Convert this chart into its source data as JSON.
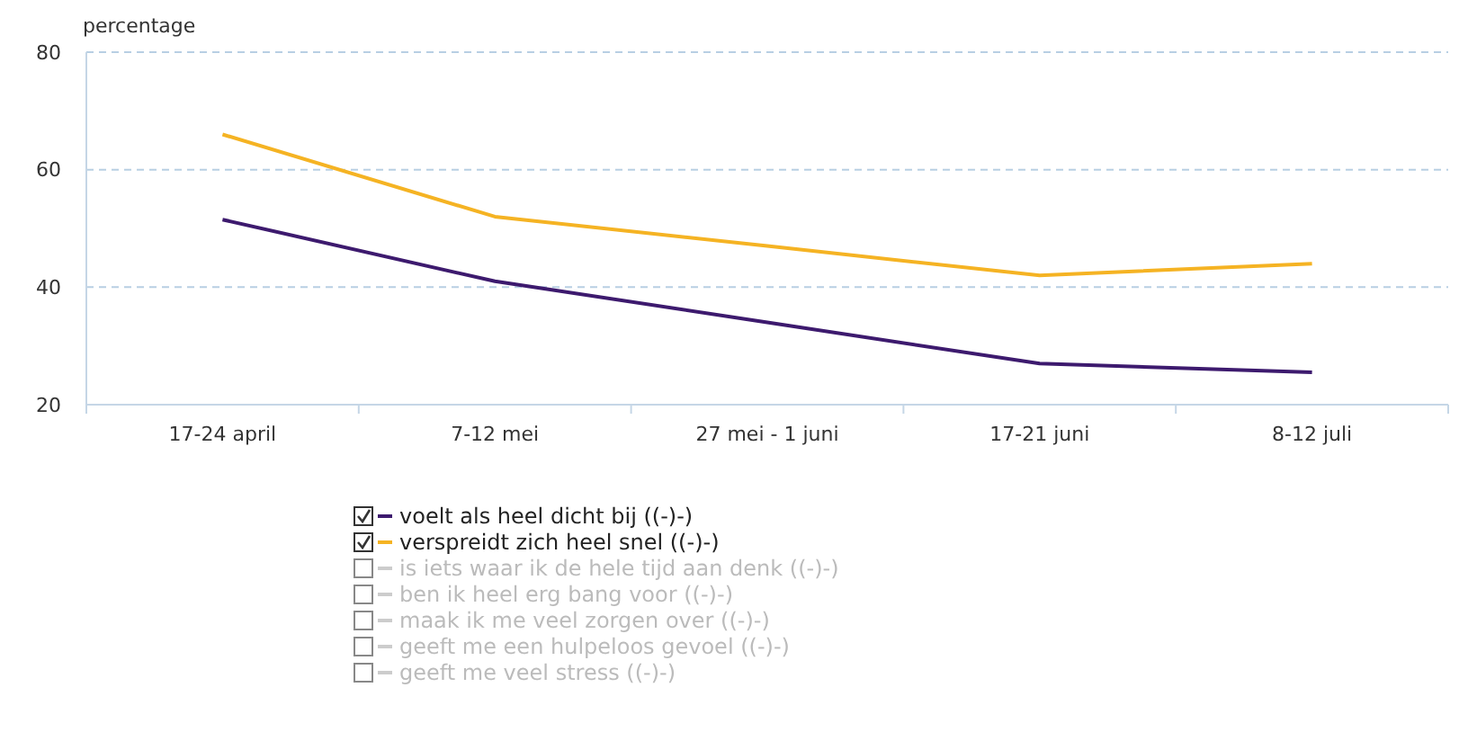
{
  "chart_data": {
    "type": "line",
    "ylabel": "percentage",
    "categories": [
      "17-24 april",
      "7-12 mei",
      "27 mei - 1 juni",
      "17-21 juni",
      "8-12 juli"
    ],
    "series": [
      {
        "name": "voelt als heel dicht bij ((-)-)",
        "color": "#3d1a6e",
        "values": [
          51.5,
          41,
          34,
          27,
          25.5
        ]
      },
      {
        "name": "verspreidt zich heel snel ((-)-)",
        "color": "#f5b323",
        "values": [
          66,
          52,
          47,
          42,
          44
        ]
      },
      {
        "name": "is iets waar ik de hele tijd aan denk ((-)-)",
        "color": "#cccccc",
        "values": [
          null,
          null,
          null,
          null,
          null
        ]
      },
      {
        "name": "ben ik heel erg bang voor ((-)-)",
        "color": "#cccccc",
        "values": [
          null,
          null,
          null,
          null,
          null
        ]
      },
      {
        "name": "maak ik me veel zorgen over ((-)-)",
        "color": "#cccccc",
        "values": [
          null,
          null,
          null,
          null,
          null
        ]
      },
      {
        "name": "geeft me een hulpeloos gevoel ((-)-)",
        "color": "#cccccc",
        "values": [
          null,
          null,
          null,
          null,
          null
        ]
      },
      {
        "name": "geeft me veel stress ((-)-)",
        "color": "#cccccc",
        "values": [
          null,
          null,
          null,
          null,
          null
        ]
      }
    ],
    "ylim": [
      20,
      80
    ],
    "yticks": [
      20,
      40,
      60,
      80
    ],
    "grid": "y",
    "legend": "bottom",
    "line_style": "solid",
    "marker": "none"
  }
}
